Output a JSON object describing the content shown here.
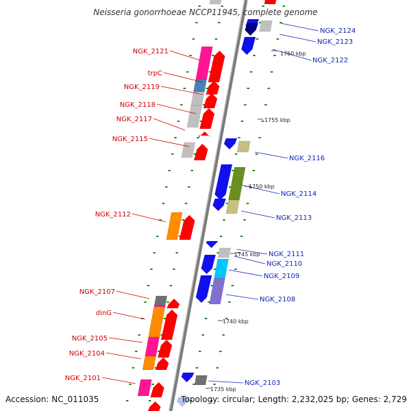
{
  "title": "Neisseria gonorrhoeae NCCP11945, complete genome",
  "footer": {
    "accession": "Accession: NC_011035",
    "summary": "Topology: circular; Length: 2,232,025 bp; Genes: 2,729"
  },
  "colors": {
    "left_label": "#cc0000",
    "right_label": "#1122bb",
    "backbone": "#7a7a7a",
    "dash": "#1a8c1a",
    "red": "#ff0000",
    "magenta": "#ff1493",
    "orange": "#ff8c00",
    "steelblue": "#4682b4",
    "grey": "#c0c0c0",
    "darkgrey": "#707070",
    "blue": "#1010ee",
    "navy": "#000080",
    "cyan": "#00c8ff",
    "olive": "#6b8e23",
    "khaki": "#c8c080",
    "purple": "#8070d0",
    "lightblue": "#b0c4f0"
  },
  "ticks": [
    {
      "label": "1760 kbp"
    },
    {
      "label": "1755 kbp"
    },
    {
      "label": "1750 kbp"
    },
    {
      "label": "1745 kbp"
    },
    {
      "label": "1740 kbp"
    },
    {
      "label": "1735 kbp"
    }
  ],
  "genes_left": [
    {
      "label": "NGK_2121"
    },
    {
      "label": "trpC"
    },
    {
      "label": "NGK_2119"
    },
    {
      "label": "NGK_2118"
    },
    {
      "label": "NGK_2117"
    },
    {
      "label": "NGK_2115"
    },
    {
      "label": "NGK_2112"
    },
    {
      "label": "NGK_2107"
    },
    {
      "label": "dinG"
    },
    {
      "label": "NGK_2105"
    },
    {
      "label": "NGK_2104"
    },
    {
      "label": "NGK_2101"
    }
  ],
  "genes_right": [
    {
      "label": "NGK_2124"
    },
    {
      "label": "NGK_2123"
    },
    {
      "label": "NGK_2122"
    },
    {
      "label": "NGK_2116"
    },
    {
      "label": "NGK_2114"
    },
    {
      "label": "NGK_2113"
    },
    {
      "label": "NGK_2111"
    },
    {
      "label": "NGK_2110"
    },
    {
      "label": "NGK_2109"
    },
    {
      "label": "NGK_2108"
    },
    {
      "label": "NGK_2103"
    }
  ]
}
